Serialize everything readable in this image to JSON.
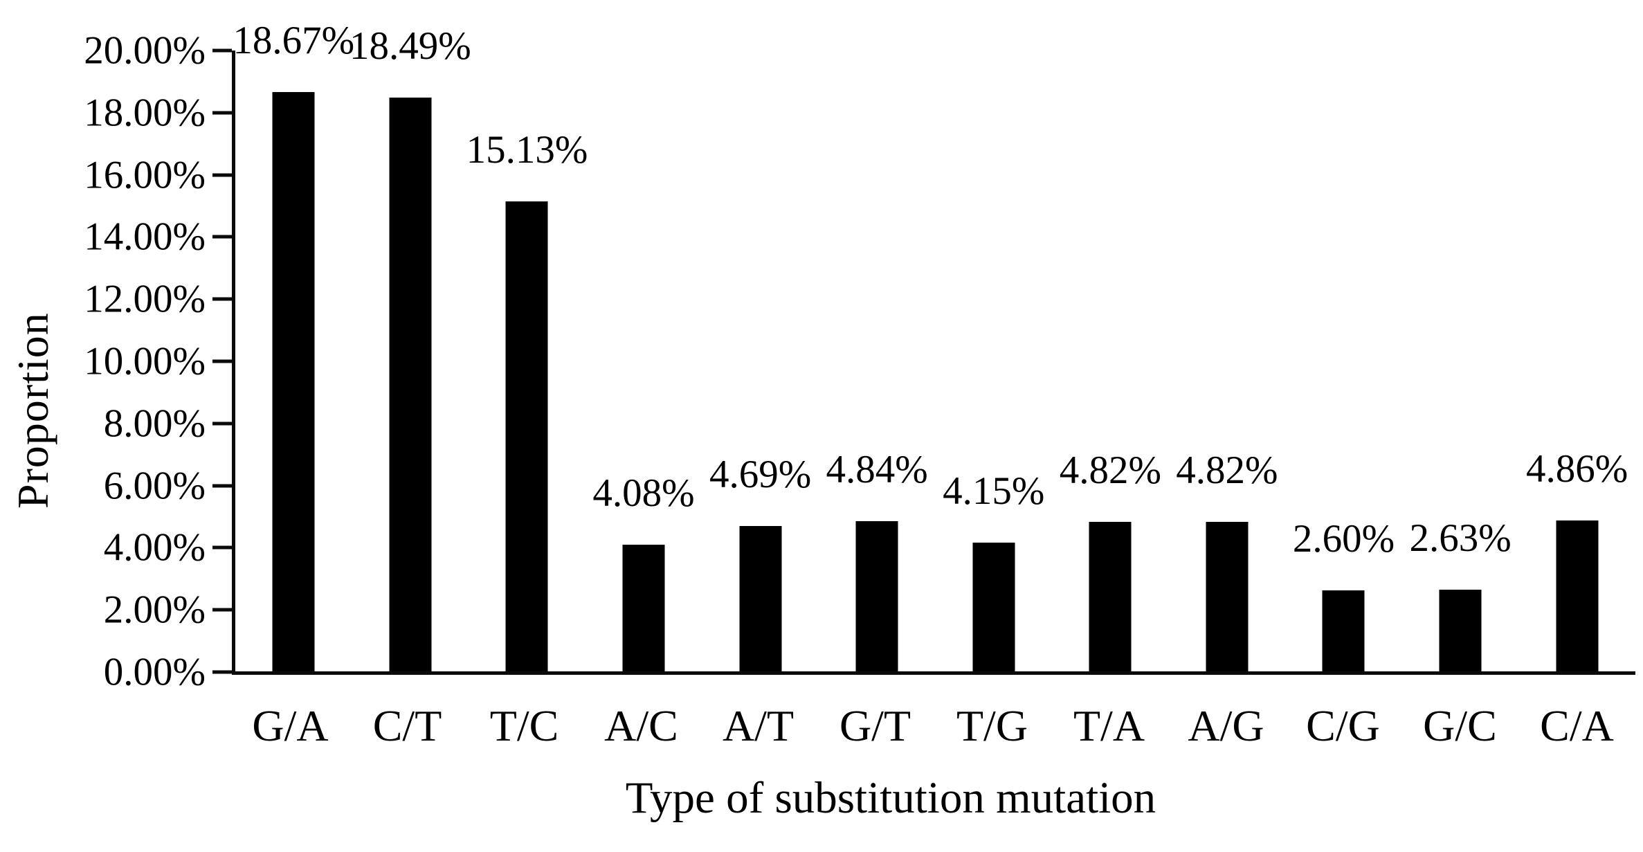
{
  "chart_data": {
    "type": "bar",
    "title": "",
    "xlabel": "Type of substitution mutation",
    "ylabel": "Proportion",
    "categories": [
      "G/A",
      "C/T",
      "T/C",
      "A/C",
      "A/T",
      "G/T",
      "T/G",
      "T/A",
      "A/G",
      "C/G",
      "G/C",
      "C/A"
    ],
    "values": [
      18.67,
      18.49,
      15.13,
      4.08,
      4.69,
      4.84,
      4.15,
      4.82,
      4.82,
      2.6,
      2.63,
      4.86
    ],
    "data_labels": [
      "18.67%",
      "18.49%",
      "15.13%",
      "4.08%",
      "4.69%",
      "4.84%",
      "4.15%",
      "4.82%",
      "4.82%",
      "2.60%",
      "2.63%",
      "4.86%"
    ],
    "y_ticks": [
      "20.00%",
      "18.00%",
      "16.00%",
      "14.00%",
      "12.00%",
      "10.00%",
      "8.00%",
      "6.00%",
      "4.00%",
      "2.00%",
      "0.00%"
    ],
    "ylim": [
      0,
      20
    ],
    "grid": false,
    "legend_position": "none",
    "bar_color": "#000000",
    "background_color": "#ffffff",
    "axis_color": "#0a0a0a"
  }
}
